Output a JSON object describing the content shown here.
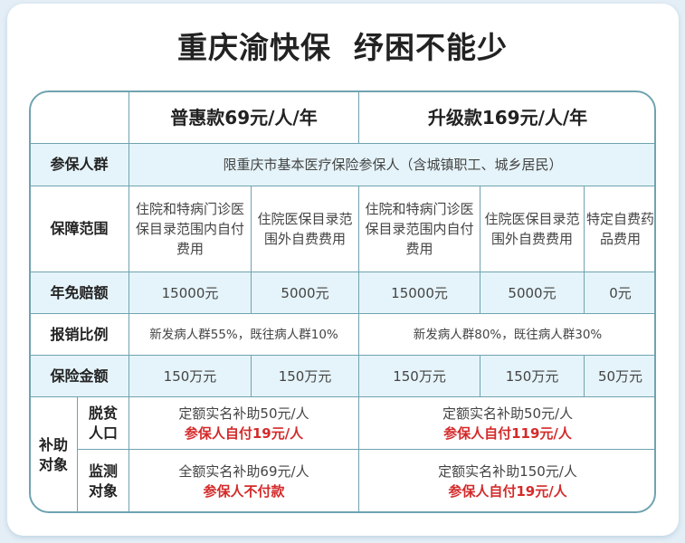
{
  "title": "重庆渝快保  纾困不能少",
  "colors": {
    "border": "#6fa3b0",
    "row_highlight": "#e5f4fa",
    "emphasis_red": "#d42a2a"
  },
  "header": {
    "plan_basic": "普惠款69元/人/年",
    "plan_upgrade": "升级款169元/人/年"
  },
  "rows": {
    "eligibility": {
      "label": "参保人群",
      "value": "限重庆市基本医疗保险参保人（含城镇职工、城乡居民）"
    },
    "coverage": {
      "label": "保障范围",
      "cells": [
        "住院和特病门诊医保目录范围内自付费用",
        "住院医保目录范围外自费费用",
        "住院和特病门诊医保目录范围内自付费用",
        "住院医保目录范围外自费费用",
        "特定自费药品费用"
      ]
    },
    "deductible": {
      "label": "年免赔额",
      "cells": [
        "15000元",
        "5000元",
        "15000元",
        "5000元",
        "0元"
      ]
    },
    "reimbursement": {
      "label": "报销比例",
      "basic": "新发病人群55%，既往病人群10%",
      "upgrade": "新发病人群80%，既往病人群30%"
    },
    "insured_amount": {
      "label": "保险金额",
      "cells": [
        "150万元",
        "150万元",
        "150万元",
        "150万元",
        "50万元"
      ]
    },
    "subsidy": {
      "label": "补助对象",
      "poverty": {
        "label": "脱贫人口",
        "basic_line1": "定额实名补助50元/人",
        "basic_line2": "参保人自付19元/人",
        "upgrade_line1": "定额实名补助50元/人",
        "upgrade_line2": "参保人自付119元/人"
      },
      "monitor": {
        "label": "监测对象",
        "basic_line1": "全额实名补助69元/人",
        "basic_line2": "参保人不付款",
        "upgrade_line1": "定额实名补助150元/人",
        "upgrade_line2": "参保人自付19元/人"
      }
    }
  }
}
